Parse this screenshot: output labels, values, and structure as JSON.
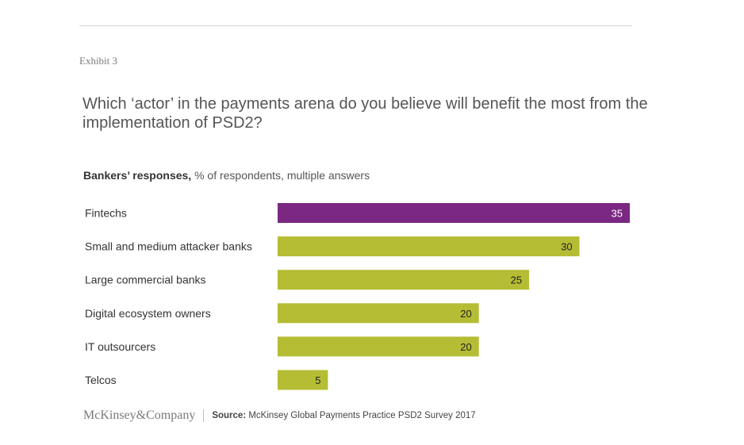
{
  "header": {
    "exhibit": "Exhibit 3",
    "title": "Which ‘actor’ in the payments arena do you believe will benefit the most from the implementation of PSD2?",
    "subtitle_bold": "Bankers’ responses,",
    "subtitle_rest": " % of respondents, multiple answers"
  },
  "footer": {
    "logo": "McKinsey&Company",
    "source_label": "Source:",
    "source_text": " McKinsey Global Payments Practice PSD2 Survey 2017"
  },
  "colors": {
    "highlight": "#7b2882",
    "default": "#b5bd35",
    "label_highlight": "#ffffff",
    "label_default": "#222222"
  },
  "chart_data": {
    "type": "bar",
    "orientation": "horizontal",
    "categories": [
      "Fintechs",
      "Small and medium attacker banks",
      "Large commercial banks",
      "Digital ecosystem owners",
      "IT outsourcers",
      "Telcos"
    ],
    "values": [
      35,
      30,
      25,
      20,
      20,
      5
    ],
    "highlighted": [
      "Fintechs"
    ],
    "title": "Which ‘actor’ in the payments arena do you believe will benefit the most from the implementation of PSD2?",
    "xlabel": "",
    "ylabel": "",
    "xlim": [
      0,
      35
    ],
    "unit": "% of respondents",
    "grid": false,
    "legend": "none",
    "data_labels": "inside-end"
  }
}
